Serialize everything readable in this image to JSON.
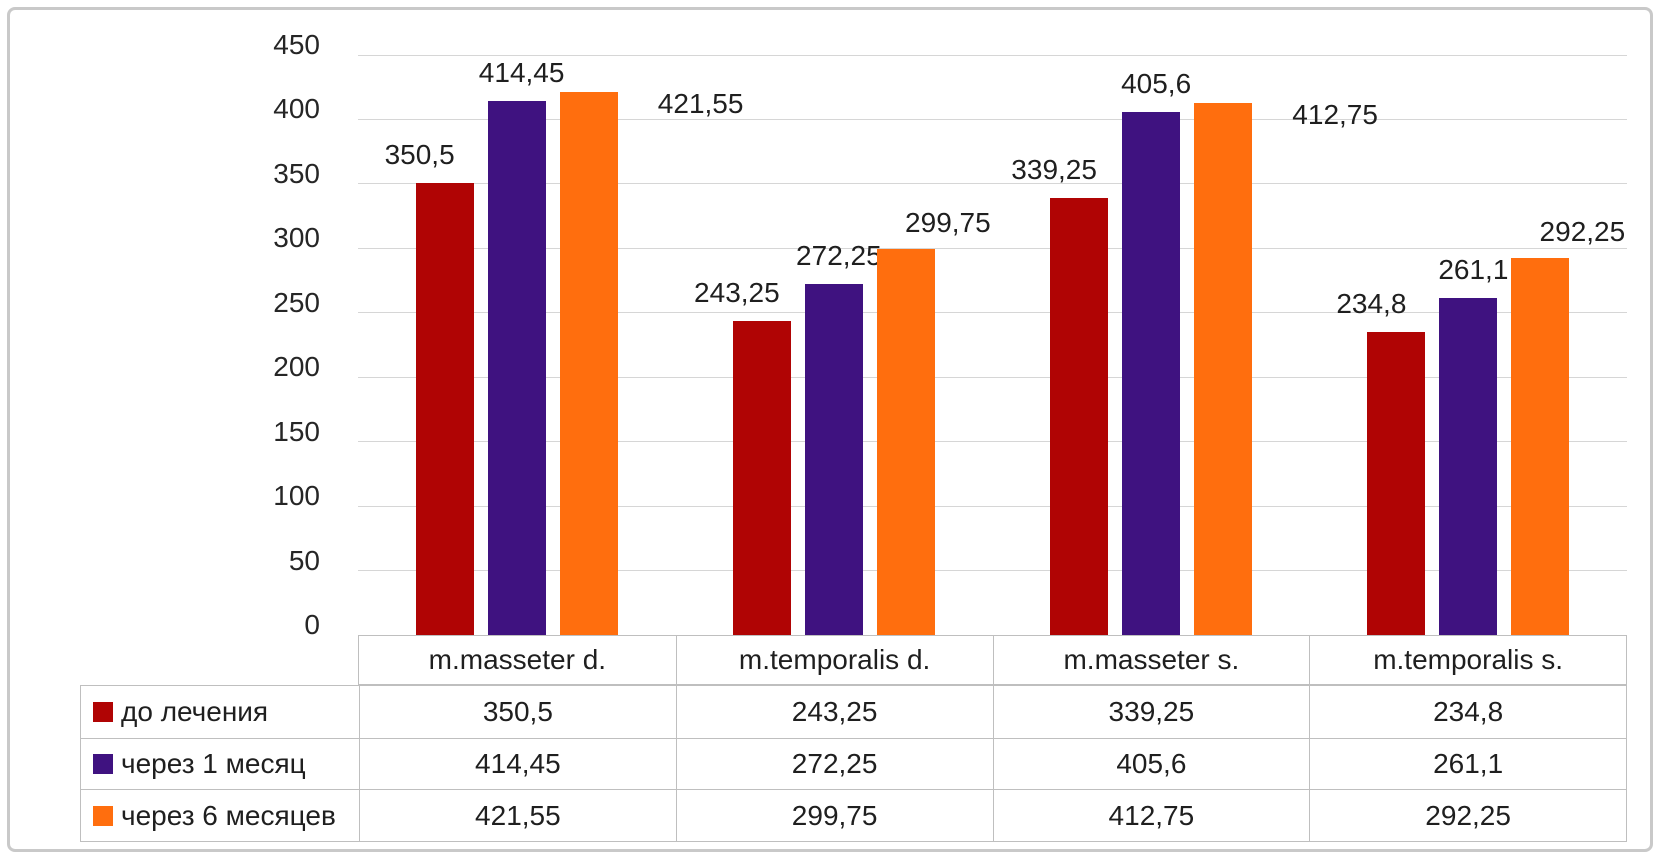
{
  "chart_data": {
    "type": "bar",
    "title": "",
    "xlabel": "",
    "ylabel": "",
    "categories": [
      "m.masseter d.",
      "m.temporalis d.",
      "m.masseter s.",
      "m.temporalis s."
    ],
    "series": [
      {
        "name": "до лечения",
        "color": "#b00404",
        "values": [
          350.5,
          243.25,
          339.25,
          234.8
        ],
        "value_labels": [
          "350,5",
          "243,25",
          "339,25",
          "234,8"
        ]
      },
      {
        "name": "через 1 месяц",
        "color": "#3f1280",
        "values": [
          414.45,
          272.25,
          405.6,
          261.1
        ],
        "value_labels": [
          "414,45",
          "272,25",
          "405,6",
          "261,1"
        ]
      },
      {
        "name": "через 6 месяцев",
        "color": "#ff6e0e",
        "values": [
          421.55,
          299.75,
          412.75,
          292.25
        ],
        "value_labels": [
          "421,55",
          "299,75",
          "412,75",
          "292,25"
        ]
      }
    ],
    "y_axis": {
      "min": 0,
      "max": 450,
      "step": 50,
      "tick_labels": [
        "0",
        "50",
        "100",
        "150",
        "200",
        "250",
        "300",
        "350",
        "400",
        "450"
      ]
    },
    "grid": true,
    "legend_position": "data-table-left-column",
    "colors": {
      "gridline": "#d6d6d6",
      "table_border": "#bfbfbf",
      "text": "#1f1f1f",
      "frame_border": "#c9c9c9",
      "background": "#ffffff"
    }
  }
}
